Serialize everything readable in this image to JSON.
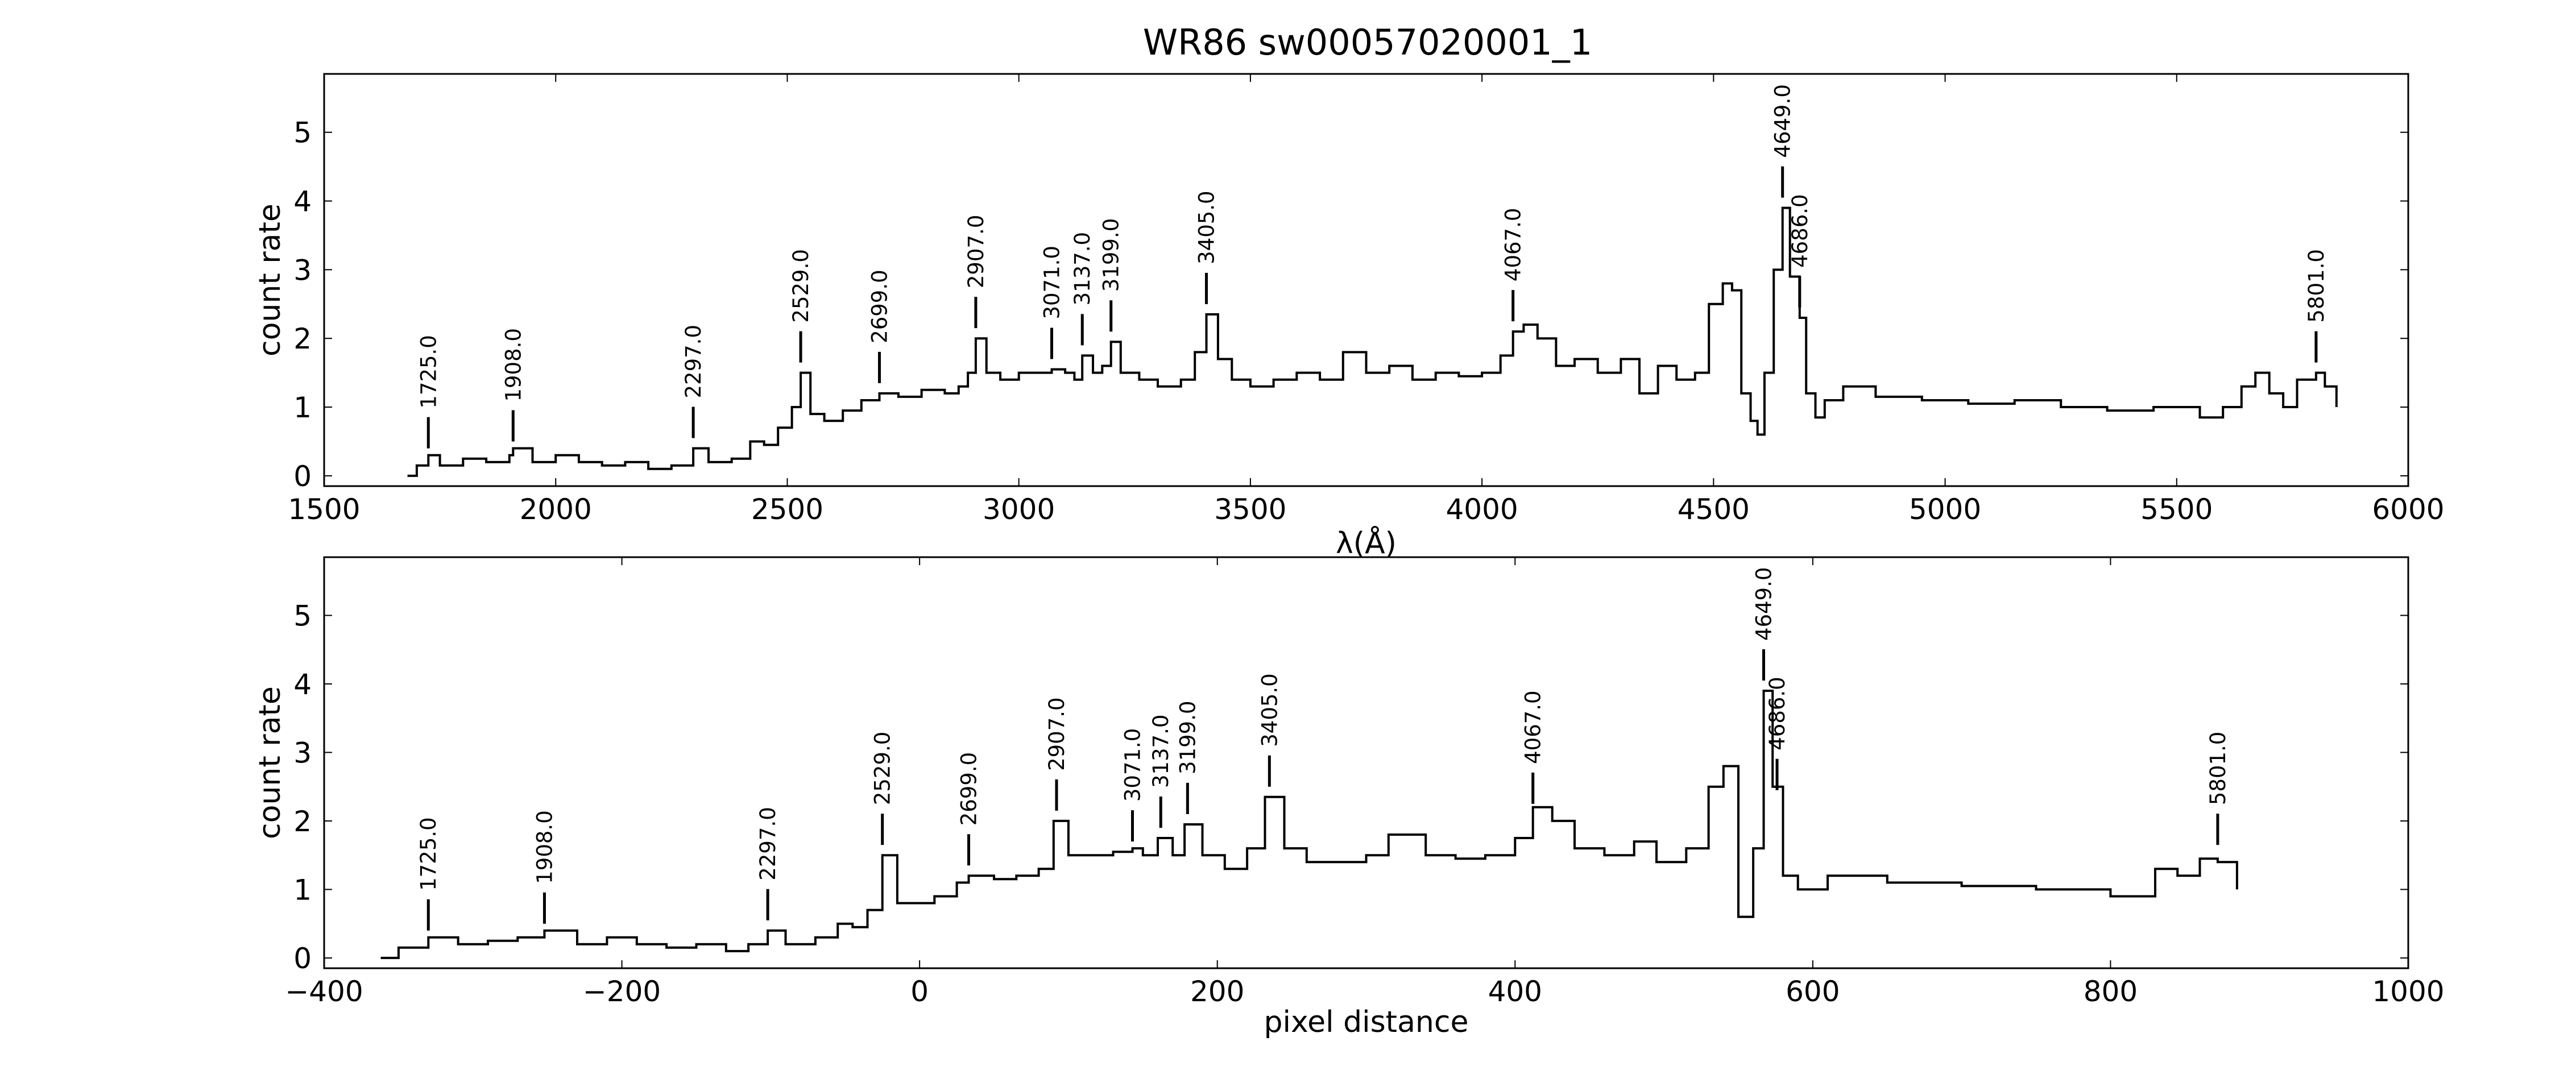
{
  "title": "WR86  sw00057020001_1",
  "chart_data": [
    {
      "type": "line",
      "xlabel": "λ(Å)",
      "ylabel": "count rate",
      "xlim": [
        1500,
        6000
      ],
      "ylim": [
        -0.15,
        5.85
      ],
      "xticks": [
        1500,
        2000,
        2500,
        3000,
        3500,
        4000,
        4500,
        5000,
        5500,
        6000
      ],
      "xtick_labels": [
        "1500",
        "2000",
        "2500",
        "3000",
        "3500",
        "4000",
        "4500",
        "5000",
        "5500",
        "6000"
      ],
      "yticks": [
        0,
        1,
        2,
        3,
        4,
        5
      ],
      "ytick_labels": [
        "0",
        "1",
        "2",
        "3",
        "4",
        "5"
      ],
      "grid": false,
      "series": [
        {
          "x": [
            1680,
            1700,
            1725,
            1750,
            1800,
            1850,
            1900,
            1908,
            1950,
            2000,
            2050,
            2100,
            2150,
            2200,
            2250,
            2297,
            2330,
            2380,
            2420,
            2450,
            2480,
            2510,
            2529,
            2550,
            2580,
            2620,
            2660,
            2699,
            2740,
            2790,
            2840,
            2870,
            2890,
            2907,
            2930,
            2960,
            3000,
            3040,
            3071,
            3100,
            3120,
            3137,
            3160,
            3180,
            3199,
            3220,
            3260,
            3300,
            3350,
            3380,
            3405,
            3430,
            3460,
            3500,
            3550,
            3600,
            3650,
            3700,
            3750,
            3800,
            3850,
            3900,
            3950,
            4000,
            4040,
            4067,
            4090,
            4120,
            4160,
            4200,
            4250,
            4300,
            4340,
            4380,
            4420,
            4460,
            4490,
            4520,
            4540,
            4560,
            4580,
            4595,
            4610,
            4630,
            4649,
            4665,
            4686,
            4700,
            4720,
            4740,
            4780,
            4850,
            4950,
            5050,
            5150,
            5250,
            5350,
            5450,
            5550,
            5600,
            5640,
            5670,
            5700,
            5730,
            5760,
            5801,
            5820,
            5845
          ],
          "y": [
            0.0,
            0.15,
            0.3,
            0.15,
            0.25,
            0.2,
            0.3,
            0.4,
            0.2,
            0.3,
            0.2,
            0.15,
            0.2,
            0.1,
            0.15,
            0.4,
            0.2,
            0.25,
            0.5,
            0.45,
            0.7,
            1.0,
            1.5,
            0.9,
            0.8,
            0.95,
            1.1,
            1.2,
            1.15,
            1.25,
            1.2,
            1.3,
            1.5,
            2.0,
            1.5,
            1.4,
            1.5,
            1.5,
            1.55,
            1.5,
            1.4,
            1.75,
            1.5,
            1.6,
            1.95,
            1.5,
            1.4,
            1.3,
            1.4,
            1.8,
            2.35,
            1.7,
            1.4,
            1.3,
            1.4,
            1.5,
            1.4,
            1.8,
            1.5,
            1.6,
            1.4,
            1.5,
            1.45,
            1.5,
            1.75,
            2.1,
            2.2,
            2.0,
            1.6,
            1.7,
            1.5,
            1.7,
            1.2,
            1.6,
            1.4,
            1.5,
            2.5,
            2.8,
            2.7,
            1.2,
            0.8,
            0.6,
            1.5,
            3.0,
            3.9,
            2.9,
            2.3,
            1.2,
            0.85,
            1.1,
            1.3,
            1.15,
            1.1,
            1.05,
            1.1,
            1.0,
            0.95,
            1.0,
            0.85,
            1.0,
            1.3,
            1.5,
            1.2,
            1.0,
            1.4,
            1.5,
            1.3,
            1.0
          ]
        }
      ],
      "line_ids": [
        {
          "label": "1725.0",
          "x": 1725,
          "y": 0.3
        },
        {
          "label": "1908.0",
          "x": 1908,
          "y": 0.4
        },
        {
          "label": "2297.0",
          "x": 2297,
          "y": 0.45
        },
        {
          "label": "2529.0",
          "x": 2529,
          "y": 1.55
        },
        {
          "label": "2699.0",
          "x": 2699,
          "y": 1.25
        },
        {
          "label": "2907.0",
          "x": 2907,
          "y": 2.05
        },
        {
          "label": "3071.0",
          "x": 3071,
          "y": 1.6
        },
        {
          "label": "3137.0",
          "x": 3137,
          "y": 1.8
        },
        {
          "label": "3199.0",
          "x": 3199,
          "y": 2.0
        },
        {
          "label": "3405.0",
          "x": 3405,
          "y": 2.4
        },
        {
          "label": "4067.0",
          "x": 4067,
          "y": 2.15
        },
        {
          "label": "4649.0",
          "x": 4649,
          "y": 3.95
        },
        {
          "label": "4686.0",
          "x": 4686,
          "y": 2.35
        },
        {
          "label": "5801.0",
          "x": 5801,
          "y": 1.55
        }
      ]
    },
    {
      "type": "line",
      "xlabel": "pixel distance",
      "ylabel": "count rate",
      "xlim": [
        -400,
        1000
      ],
      "ylim": [
        -0.15,
        5.85
      ],
      "xticks": [
        -400,
        -200,
        0,
        200,
        400,
        600,
        800,
        1000
      ],
      "xtick_labels": [
        "−400",
        "−200",
        "0",
        "200",
        "400",
        "600",
        "800",
        "1000"
      ],
      "yticks": [
        0,
        1,
        2,
        3,
        4,
        5
      ],
      "ytick_labels": [
        "0",
        "1",
        "2",
        "3",
        "4",
        "5"
      ],
      "grid": false,
      "series": [
        {
          "x": [
            -362,
            -350,
            -330,
            -310,
            -290,
            -270,
            -252,
            -230,
            -210,
            -190,
            -170,
            -150,
            -130,
            -115,
            -102,
            -90,
            -70,
            -55,
            -45,
            -35,
            -25,
            -15,
            -5,
            10,
            25,
            33,
            50,
            65,
            80,
            90,
            100,
            115,
            130,
            143,
            150,
            160,
            170,
            178,
            190,
            205,
            220,
            232,
            245,
            260,
            280,
            300,
            315,
            340,
            360,
            380,
            400,
            412,
            425,
            440,
            460,
            480,
            495,
            515,
            530,
            540,
            550,
            560,
            567,
            573,
            580,
            590,
            610,
            650,
            700,
            750,
            800,
            830,
            845,
            860,
            872,
            885
          ],
          "y": [
            0.0,
            0.15,
            0.3,
            0.2,
            0.25,
            0.3,
            0.4,
            0.2,
            0.3,
            0.2,
            0.15,
            0.2,
            0.1,
            0.2,
            0.4,
            0.2,
            0.3,
            0.5,
            0.45,
            0.7,
            1.5,
            0.8,
            0.8,
            0.9,
            1.1,
            1.2,
            1.15,
            1.2,
            1.3,
            2.0,
            1.5,
            1.5,
            1.55,
            1.6,
            1.5,
            1.75,
            1.5,
            1.95,
            1.5,
            1.3,
            1.6,
            2.35,
            1.6,
            1.4,
            1.4,
            1.5,
            1.8,
            1.5,
            1.45,
            1.5,
            1.75,
            2.2,
            2.0,
            1.6,
            1.5,
            1.7,
            1.4,
            1.6,
            2.5,
            2.8,
            0.6,
            1.6,
            3.9,
            2.5,
            1.2,
            1.0,
            1.2,
            1.1,
            1.05,
            1.0,
            0.9,
            1.3,
            1.2,
            1.45,
            1.4,
            1.0
          ]
        }
      ],
      "line_ids": [
        {
          "label": "1725.0",
          "x": -330,
          "y": 0.3
        },
        {
          "label": "1908.0",
          "x": -252,
          "y": 0.4
        },
        {
          "label": "2297.0",
          "x": -102,
          "y": 0.45
        },
        {
          "label": "2529.0",
          "x": -25,
          "y": 1.55
        },
        {
          "label": "2699.0",
          "x": 33,
          "y": 1.25
        },
        {
          "label": "2907.0",
          "x": 92,
          "y": 2.05
        },
        {
          "label": "3071.0",
          "x": 143,
          "y": 1.6
        },
        {
          "label": "3137.0",
          "x": 162,
          "y": 1.8
        },
        {
          "label": "3199.0",
          "x": 180,
          "y": 2.0
        },
        {
          "label": "3405.0",
          "x": 235,
          "y": 2.4
        },
        {
          "label": "4067.0",
          "x": 412,
          "y": 2.15
        },
        {
          "label": "4649.0",
          "x": 567,
          "y": 3.95
        },
        {
          "label": "4686.0",
          "x": 576,
          "y": 2.35
        },
        {
          "label": "5801.0",
          "x": 872,
          "y": 1.55
        }
      ]
    }
  ]
}
